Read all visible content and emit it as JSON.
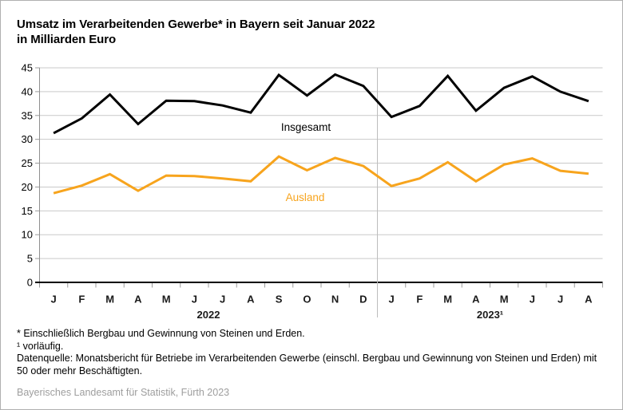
{
  "header": {
    "title": "Umsatz im Verarbeitenden Gewerbe* in Bayern seit Januar 2022",
    "subtitle": "in Milliarden Euro"
  },
  "chart_data": {
    "type": "line",
    "title": "Umsatz im Verarbeitenden Gewerbe* in Bayern seit Januar 2022",
    "subtitle": "in Milliarden Euro",
    "ylabel": "Milliarden Euro",
    "xlabel": "",
    "ylim": [
      0,
      45
    ],
    "ytick_step": 5,
    "grid": true,
    "legend_position": "inline-labels",
    "x_months": [
      "J",
      "F",
      "M",
      "A",
      "M",
      "J",
      "J",
      "A",
      "S",
      "O",
      "N",
      "D",
      "J",
      "F",
      "M",
      "A",
      "M",
      "J",
      "J",
      "A"
    ],
    "year_groups": [
      {
        "label": "2022",
        "months": 12
      },
      {
        "label": "2023¹",
        "months": 8
      }
    ],
    "series": [
      {
        "name": "Insgesamt",
        "color": "#000000",
        "label_x": 382,
        "label_y": 163,
        "values": [
          31.3,
          34.4,
          39.4,
          33.2,
          38.1,
          38.0,
          37.1,
          35.6,
          43.5,
          39.2,
          43.6,
          41.2,
          34.7,
          37.0,
          43.3,
          36.0,
          40.8,
          43.2,
          40.0,
          38.0
        ]
      },
      {
        "name": "Ausland",
        "color": "#F7A41D",
        "label_x": 381,
        "label_y": 251,
        "values": [
          18.7,
          20.3,
          22.7,
          19.2,
          22.4,
          22.3,
          21.8,
          21.2,
          26.4,
          23.5,
          26.1,
          24.4,
          20.2,
          21.8,
          25.2,
          21.2,
          24.7,
          26.0,
          23.4,
          22.8
        ]
      }
    ]
  },
  "footnotes": {
    "asterisk": "* Einschließlich Bergbau und Gewinnung von Steinen und Erden.",
    "preliminary": "¹ vorläufig.",
    "datasource": "Datenquelle: Monatsbericht für Betriebe im Verarbeitenden Gewerbe (einschl. Bergbau und Gewinnung von Steinen und Erden) mit 50 oder mehr Beschäftigten."
  },
  "source": "Bayerisches Landesamt für Statistik, Fürth 2023",
  "colors": {
    "line_total": "#000000",
    "line_foreign": "#F7A41D",
    "grid": "#c9c9c9",
    "axis_x": "#000000",
    "axis_y": "#8f8f8f",
    "tick": "#9b9b9b",
    "divider": "#bdbdbd",
    "source_text": "#9e9e9e",
    "border": "#b0b0b0"
  }
}
